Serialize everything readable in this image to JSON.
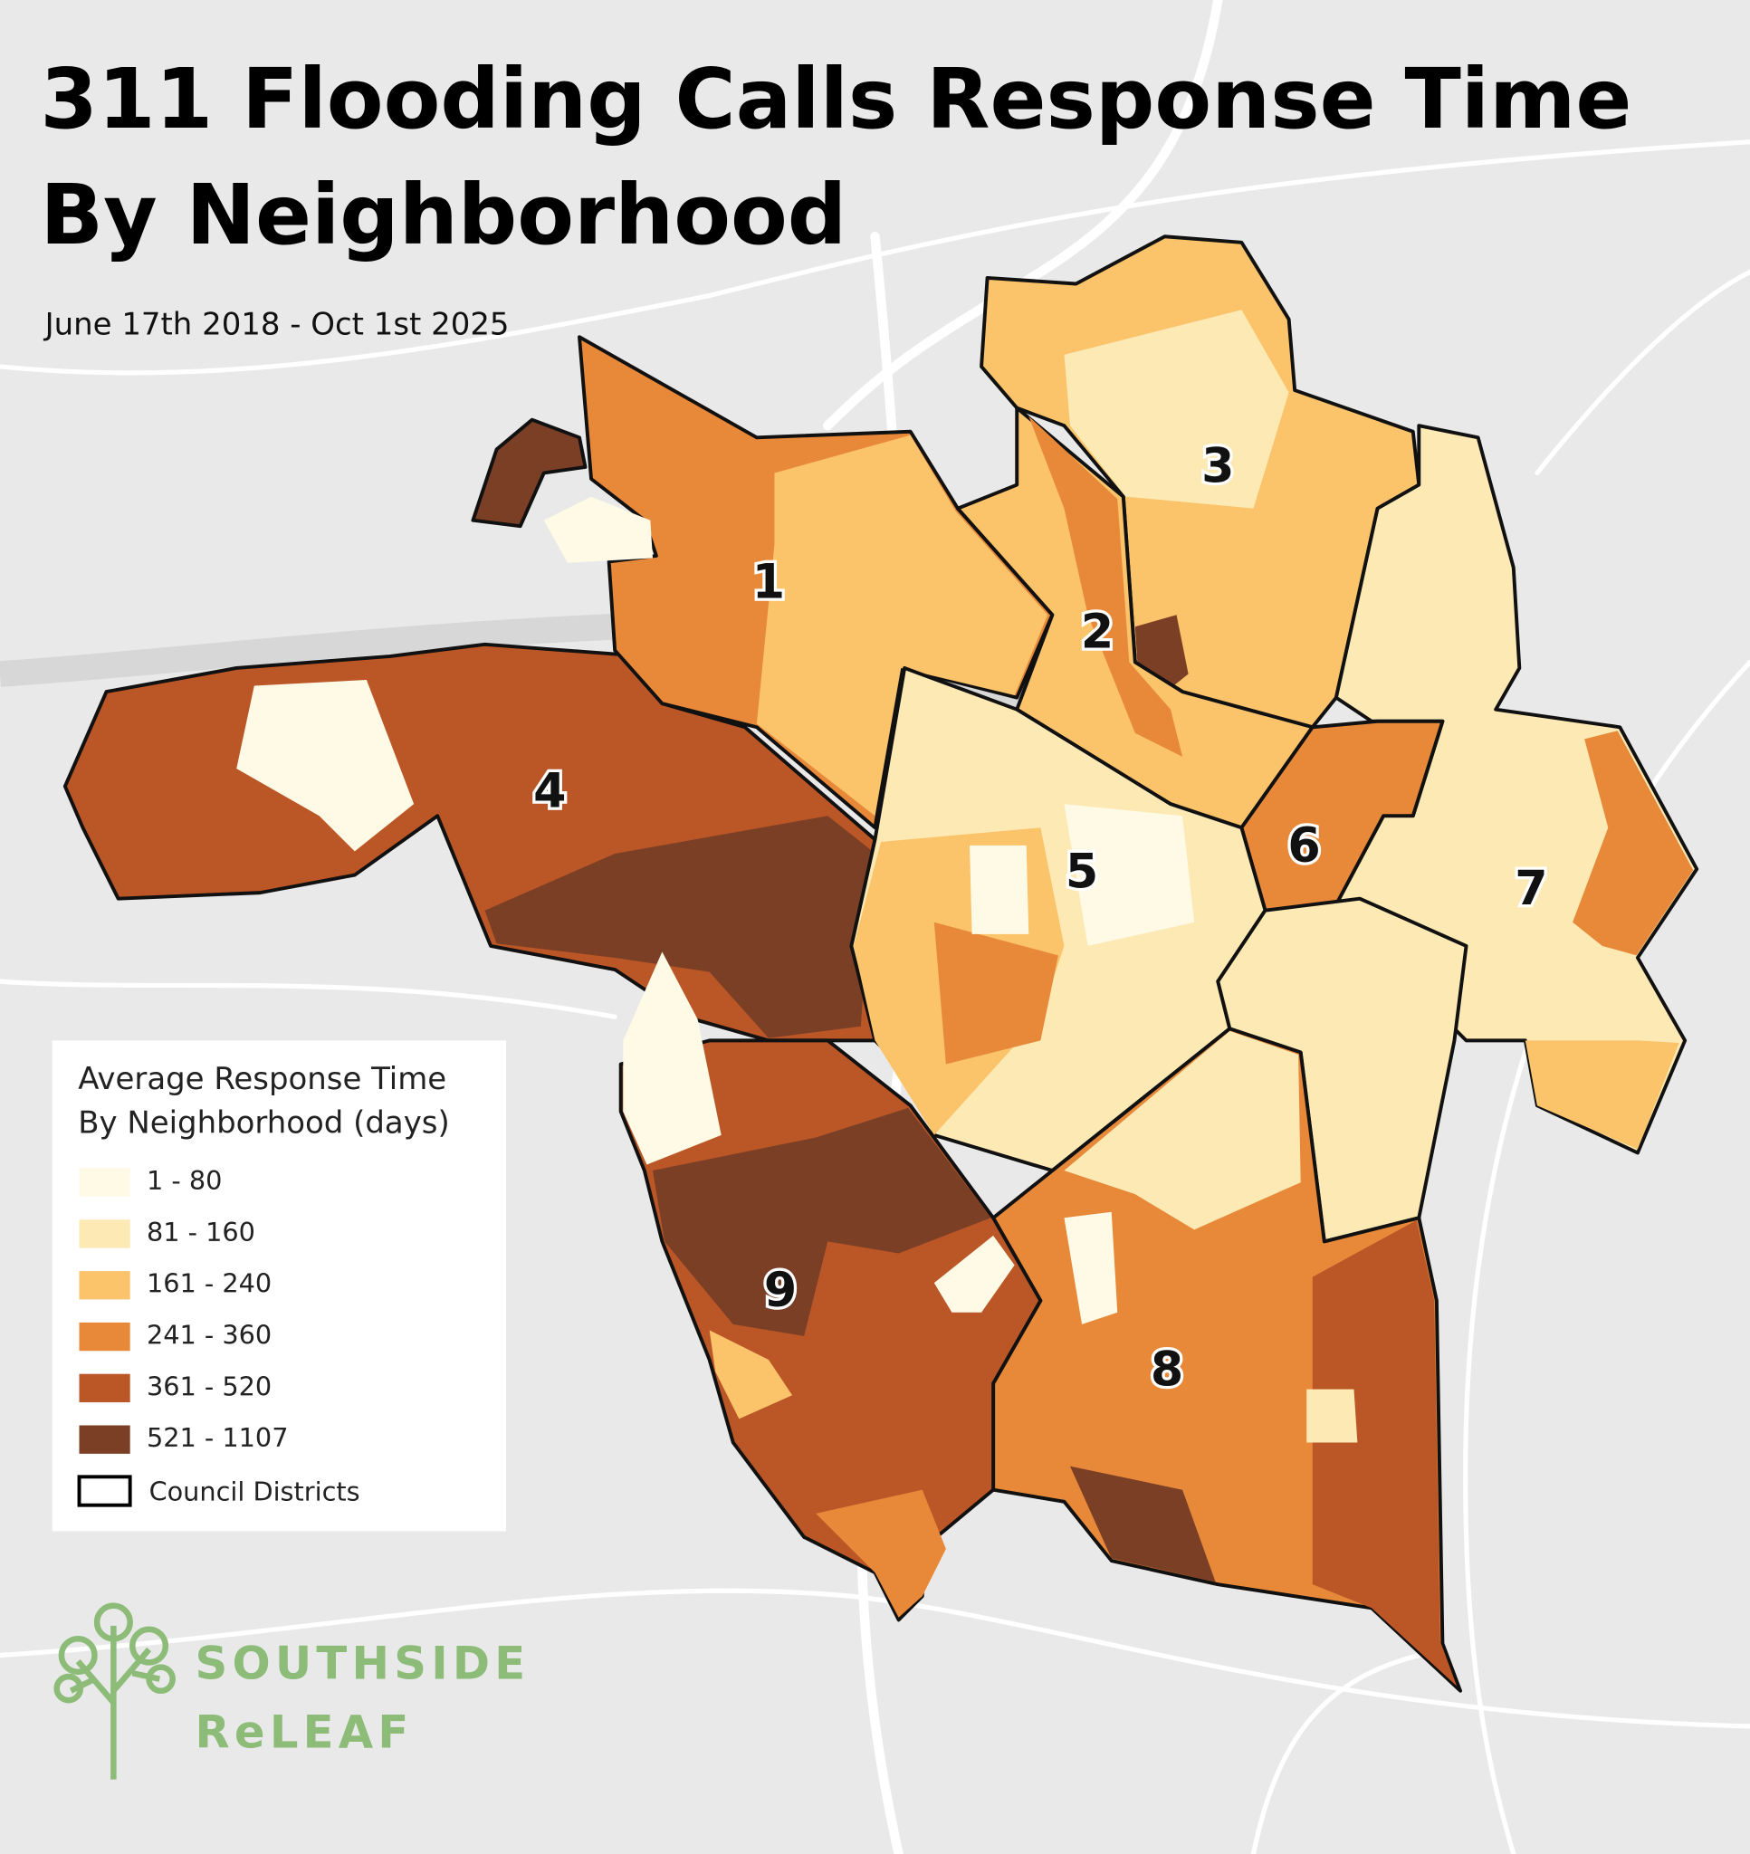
{
  "title": [
    "311 Flooding Calls Response Time",
    "By Neighborhood"
  ],
  "subtitle": "June 17th 2018 - Oct 1st 2025",
  "legend": {
    "title": [
      "Average Response Time",
      "By Neighborhood (days)"
    ],
    "items": [
      {
        "label": "1 - 80",
        "color": "#fefae6"
      },
      {
        "label": "81 - 160",
        "color": "#fde9b4"
      },
      {
        "label": "161 - 240",
        "color": "#fbc36a"
      },
      {
        "label": "241 - 360",
        "color": "#e8893a"
      },
      {
        "label": "361 - 520",
        "color": "#bb5727"
      },
      {
        "label": "521 - 1107",
        "color": "#7b3f26"
      }
    ],
    "outline_label": "Council Districts"
  },
  "district_labels": [
    "1",
    "2",
    "3",
    "4",
    "5",
    "6",
    "7",
    "8",
    "9"
  ],
  "logo": [
    "SOUTHSIDE",
    "ReLEAF"
  ]
}
